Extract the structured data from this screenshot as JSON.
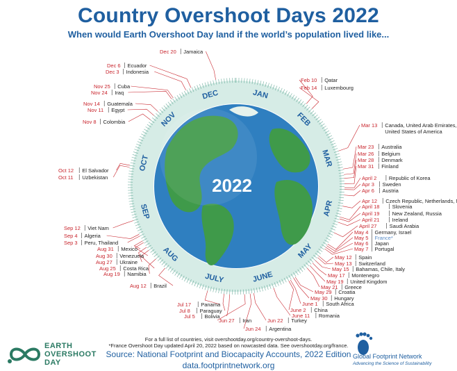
{
  "header": {
    "title": "Country Overshoot Days 2022",
    "subtitle": "When would Earth Overshoot Day land if the world’s population lived like..."
  },
  "chart_data": {
    "type": "radial-timeline",
    "center_label": "2022",
    "months": [
      "JAN",
      "FEB",
      "MAR",
      "APR",
      "MAY",
      "JUNE",
      "JULY",
      "AUG",
      "SEP",
      "OCT",
      "NOV",
      "DEC"
    ],
    "items": [
      {
        "date": "Feb 10",
        "countries": "Qatar",
        "day": 41
      },
      {
        "date": "Feb 14",
        "countries": "Luxembourg",
        "day": 45
      },
      {
        "date": "Mar 13",
        "countries": "Canada, United Arab Emirates, United States of America",
        "day": 72
      },
      {
        "date": "Mar 23",
        "countries": "Australia",
        "day": 82
      },
      {
        "date": "Mar 26",
        "countries": "Belgium",
        "day": 85
      },
      {
        "date": "Mar 28",
        "countries": "Denmark",
        "day": 87
      },
      {
        "date": "Mar 31",
        "countries": "Finland",
        "day": 90
      },
      {
        "date": "April 2",
        "countries": "Republic of Korea",
        "day": 92
      },
      {
        "date": "Apr 3",
        "countries": "Sweden",
        "day": 93
      },
      {
        "date": "Apr 6",
        "countries": "Austria",
        "day": 96
      },
      {
        "date": "Apr 12",
        "countries": "Czech Republic, Netherlands, Norway",
        "day": 102
      },
      {
        "date": "April 18",
        "countries": "Slovenia",
        "day": 108
      },
      {
        "date": "April 19",
        "countries": "New Zealand, Russia",
        "day": 109
      },
      {
        "date": "April 21",
        "countries": "Ireland",
        "day": 111
      },
      {
        "date": "April 27",
        "countries": "Saudi Arabia",
        "day": 117
      },
      {
        "date": "May 4",
        "countries": "Germany, Israel",
        "day": 124
      },
      {
        "date": "May 5",
        "countries": "France*",
        "day": 125
      },
      {
        "date": "May 6",
        "countries": "Japan",
        "day": 126
      },
      {
        "date": "May 7",
        "countries": "Portugal",
        "day": 127
      },
      {
        "date": "May 12",
        "countries": "Spain",
        "day": 132
      },
      {
        "date": "May 13",
        "countries": "Switzerland",
        "day": 133
      },
      {
        "date": "May 15",
        "countries": "Bahamas, Chile, Italy",
        "day": 135
      },
      {
        "date": "May 17",
        "countries": "Montenegro",
        "day": 137
      },
      {
        "date": "May 19",
        "countries": "United Kingdom",
        "day": 139
      },
      {
        "date": "May 21",
        "countries": "Greece",
        "day": 141
      },
      {
        "date": "May 29",
        "countries": "Croatia",
        "day": 149
      },
      {
        "date": "May 30",
        "countries": "Hungary",
        "day": 150
      },
      {
        "date": "June 1",
        "countries": "South Africa",
        "day": 152
      },
      {
        "date": "June 2",
        "countries": "China",
        "day": 153
      },
      {
        "date": "June 11",
        "countries": "Romania",
        "day": 162
      },
      {
        "date": "Jun 22",
        "countries": "Turkey",
        "day": 173
      },
      {
        "date": "Jun 24",
        "countries": "Argentina",
        "day": 175
      },
      {
        "date": "Jun 27",
        "countries": "Iran",
        "day": 178
      },
      {
        "date": "Jul 5",
        "countries": "Bolivia",
        "day": 186
      },
      {
        "date": "Jul 8",
        "countries": "Paraguay",
        "day": 189
      },
      {
        "date": "Jul 17",
        "countries": "Panama",
        "day": 198
      },
      {
        "date": "Aug 12",
        "countries": "Brazil",
        "day": 224
      },
      {
        "date": "Aug 19",
        "countries": "Namibia",
        "day": 231
      },
      {
        "date": "Aug 25",
        "countries": "Costa Rica",
        "day": 237
      },
      {
        "date": "Aug 27",
        "countries": "Ukraine",
        "day": 239
      },
      {
        "date": "Aug 30",
        "countries": "Venezuela",
        "day": 242
      },
      {
        "date": "Aug 31",
        "countries": "Mexico",
        "day": 243
      },
      {
        "date": "Sep 3",
        "countries": "Peru, Thailand",
        "day": 246
      },
      {
        "date": "Sep 4",
        "countries": "Algeria",
        "day": 247
      },
      {
        "date": "Sep 12",
        "countries": "Viet Nam",
        "day": 255
      },
      {
        "date": "Oct 11",
        "countries": "Uzbekistan",
        "day": 284
      },
      {
        "date": "Oct 12",
        "countries": "El Salvador",
        "day": 285
      },
      {
        "date": "Nov 8",
        "countries": "Colombia",
        "day": 312
      },
      {
        "date": "Nov 11",
        "countries": "Egypt",
        "day": 315
      },
      {
        "date": "Nov 14",
        "countries": "Guatemala",
        "day": 318
      },
      {
        "date": "Nov 24",
        "countries": "Iraq",
        "day": 328
      },
      {
        "date": "Nov 25",
        "countries": "Cuba",
        "day": 329
      },
      {
        "date": "Dec 3",
        "countries": "Indonesia",
        "day": 337
      },
      {
        "date": "Dec 6",
        "countries": "Ecuador",
        "day": 340
      },
      {
        "date": "Dec 20",
        "countries": "Jamaica",
        "day": 354
      }
    ],
    "colors": {
      "date": "#c8242c",
      "ring": "#d6ece6",
      "ring_tick": "#2e8a72",
      "month": "#1f5fa0",
      "ocean": "#2f7fc0",
      "land": "#3f9a4a",
      "leader": "#c8242c"
    }
  },
  "footer": {
    "note1": "For a full list of countries, visit overshootday.org/country-overshoot-days.",
    "note2": "*France Overshoot Day updated April 20, 2022 based on nowcasted data. See overshootday.org/france.",
    "source": "Source: National Footprint and Biocapacity Accounts, 2022 Edition",
    "url": "data.footprintnetwork.org"
  },
  "logos": {
    "eod_text": "EARTH OVERSHOOT DAY",
    "gfn_name": "Global Footprint Network",
    "gfn_tagline": "Advancing the Science of Sustainability"
  }
}
